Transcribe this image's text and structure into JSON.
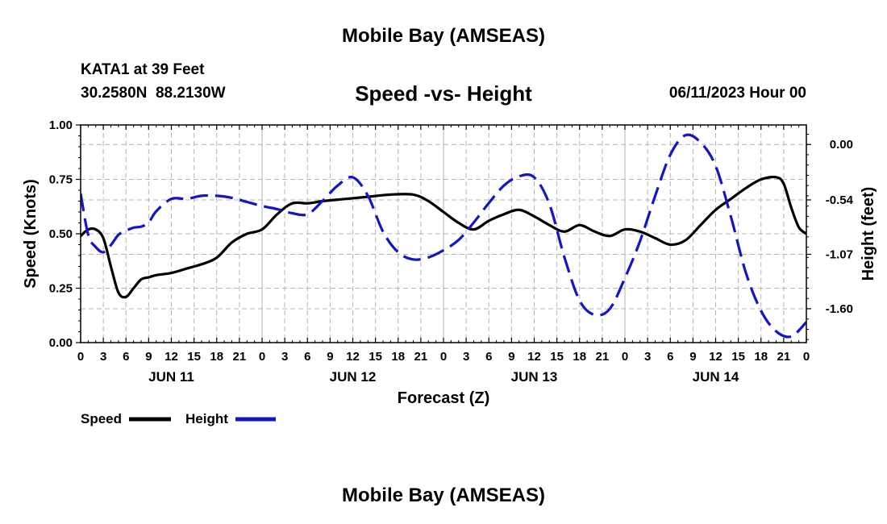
{
  "header": {
    "title": "Mobile Bay (AMSEAS)",
    "station": "KATA1 at 39 Feet",
    "coords": "30.2580N  88.2130W",
    "subtitle": "Speed -vs- Height",
    "datetime": "06/11/2023 Hour 00"
  },
  "footer": {
    "title": "Mobile Bay (AMSEAS)"
  },
  "colors": {
    "speed": "#000000",
    "height": "#1414c8",
    "grid": "#b4b4b4"
  },
  "chart_data": {
    "type": "line",
    "title": "Speed -vs- Height",
    "xlabel": "Forecast (Z)",
    "ylabel_left": "Speed (Knots)",
    "ylabel_right": "Height (feet)",
    "x_units": "forecast hour from 06/11/2023 00Z",
    "xlim": [
      0,
      96
    ],
    "x_tick_labels": [
      "0",
      "3",
      "6",
      "9",
      "12",
      "15",
      "18",
      "21",
      "0",
      "3",
      "6",
      "9",
      "12",
      "15",
      "18",
      "21",
      "0",
      "3",
      "6",
      "9",
      "12",
      "15",
      "18",
      "21",
      "0",
      "3",
      "6",
      "9",
      "12",
      "15",
      "18",
      "21",
      "0"
    ],
    "day_labels": [
      "JUN 11",
      "JUN 12",
      "JUN 13",
      "JUN 14"
    ],
    "ylim_left": [
      0,
      1
    ],
    "y_ticks_left": [
      "0.00",
      "0.25",
      "0.50",
      "0.75",
      "1.00"
    ],
    "ylim_right": [
      -1.93,
      0.19
    ],
    "y_ticks_right": [
      "0.00",
      "-0.54",
      "-1.07",
      "-1.60"
    ],
    "y_tick_values_right": [
      0.0,
      -0.54,
      -1.07,
      -1.6
    ],
    "grid": true,
    "legend_placement": "bottom-left",
    "series": [
      {
        "name": "Speed",
        "axis": "left",
        "style": "solid",
        "x": [
          0,
          1,
          2,
          3,
          4,
          5,
          6,
          7,
          8,
          9,
          10,
          12,
          14,
          16,
          18,
          20,
          22,
          24,
          26,
          28,
          30,
          32,
          35,
          38,
          41,
          44,
          46,
          48,
          50,
          52,
          54,
          56,
          58,
          60,
          62,
          64,
          66,
          68,
          70,
          72,
          74,
          76,
          78,
          80,
          82,
          84,
          86,
          88,
          90,
          92,
          93,
          94,
          95,
          96
        ],
        "values": [
          0.49,
          0.52,
          0.52,
          0.48,
          0.35,
          0.23,
          0.21,
          0.25,
          0.29,
          0.3,
          0.31,
          0.32,
          0.34,
          0.36,
          0.39,
          0.46,
          0.5,
          0.52,
          0.59,
          0.64,
          0.64,
          0.65,
          0.66,
          0.67,
          0.68,
          0.68,
          0.65,
          0.6,
          0.55,
          0.52,
          0.56,
          0.59,
          0.61,
          0.58,
          0.54,
          0.51,
          0.54,
          0.51,
          0.49,
          0.52,
          0.51,
          0.48,
          0.45,
          0.47,
          0.54,
          0.61,
          0.66,
          0.71,
          0.75,
          0.76,
          0.73,
          0.62,
          0.53,
          0.5
        ]
      },
      {
        "name": "Height",
        "axis": "right",
        "style": "dashed",
        "x": [
          0,
          1,
          2,
          3,
          4,
          5,
          6,
          7,
          8,
          9,
          10,
          12,
          14,
          16,
          18,
          20,
          22,
          24,
          26,
          28,
          30,
          32,
          34,
          36,
          38,
          40,
          42,
          44,
          46,
          48,
          50,
          52,
          54,
          56,
          58,
          60,
          62,
          64,
          66,
          68,
          70,
          72,
          74,
          76,
          78,
          80,
          82,
          84,
          86,
          88,
          90,
          92,
          94,
          96
        ],
        "values": [
          -0.48,
          -0.88,
          -1.0,
          -1.05,
          -0.98,
          -0.88,
          -0.84,
          -0.81,
          -0.8,
          -0.76,
          -0.65,
          -0.53,
          -0.53,
          -0.5,
          -0.5,
          -0.52,
          -0.56,
          -0.6,
          -0.63,
          -0.67,
          -0.68,
          -0.55,
          -0.4,
          -0.32,
          -0.5,
          -0.85,
          -1.05,
          -1.12,
          -1.1,
          -1.03,
          -0.93,
          -0.76,
          -0.57,
          -0.4,
          -0.31,
          -0.32,
          -0.58,
          -1.1,
          -1.52,
          -1.66,
          -1.6,
          -1.3,
          -0.94,
          -0.5,
          -0.1,
          0.09,
          0.02,
          -0.21,
          -0.7,
          -1.25,
          -1.62,
          -1.82,
          -1.87,
          -1.73
        ]
      }
    ]
  }
}
